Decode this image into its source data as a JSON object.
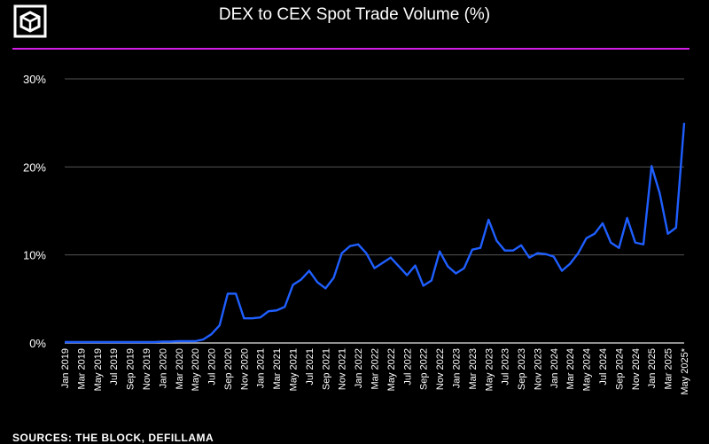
{
  "header": {
    "title": "DEX to CEX Spot Trade Volume (%)",
    "logo_icon": "the-block-cube-logo",
    "rule_color": "#d21ee6"
  },
  "footer": {
    "source": "SOURCES: THE BLOCK, DEFILLAMA"
  },
  "chart_data": {
    "type": "line",
    "title": "DEX to CEX Spot Trade Volume (%)",
    "xlabel": "",
    "ylabel": "",
    "ylim": [
      0,
      30
    ],
    "yticks": [
      0,
      10,
      20,
      30
    ],
    "ytick_labels": [
      "0%",
      "10%",
      "20%",
      "30%"
    ],
    "grid": true,
    "line_color": "#1f5fff",
    "xtick_labels": [
      "Jan 2019",
      "Mar 2019",
      "May 2019",
      "Jul 2019",
      "Sep 2019",
      "Nov 2019",
      "Jan 2020",
      "Mar 2020",
      "May 2020",
      "Jul 2020",
      "Sep 2020",
      "Nov 2020",
      "Jan 2021",
      "Mar 2021",
      "May 2021",
      "Jul 2021",
      "Sep 2021",
      "Nov 2021",
      "Jan 2022",
      "Mar 2022",
      "May 2022",
      "Jul 2022",
      "Sep 2022",
      "Nov 2022",
      "Jan 2023",
      "Mar 2023",
      "May 2023",
      "Jul 2023",
      "Sep 2023",
      "Nov 2023",
      "Jan 2024",
      "Mar 2024",
      "May 2024",
      "Jul 2024",
      "Sep 2024",
      "Nov 2024",
      "Jan 2025",
      "Mar 2025",
      "May 2025*"
    ],
    "x": [
      "Jan 2019",
      "Feb 2019",
      "Mar 2019",
      "Apr 2019",
      "May 2019",
      "Jun 2019",
      "Jul 2019",
      "Aug 2019",
      "Sep 2019",
      "Oct 2019",
      "Nov 2019",
      "Dec 2019",
      "Jan 2020",
      "Feb 2020",
      "Mar 2020",
      "Apr 2020",
      "May 2020",
      "Jun 2020",
      "Jul 2020",
      "Aug 2020",
      "Sep 2020",
      "Oct 2020",
      "Nov 2020",
      "Dec 2020",
      "Jan 2021",
      "Feb 2021",
      "Mar 2021",
      "Apr 2021",
      "May 2021",
      "Jun 2021",
      "Jul 2021",
      "Aug 2021",
      "Sep 2021",
      "Oct 2021",
      "Nov 2021",
      "Dec 2021",
      "Jan 2022",
      "Feb 2022",
      "Mar 2022",
      "Apr 2022",
      "May 2022",
      "Jun 2022",
      "Jul 2022",
      "Aug 2022",
      "Sep 2022",
      "Oct 2022",
      "Nov 2022",
      "Dec 2022",
      "Jan 2023",
      "Feb 2023",
      "Mar 2023",
      "Apr 2023",
      "May 2023",
      "Jun 2023",
      "Jul 2023",
      "Aug 2023",
      "Sep 2023",
      "Oct 2023",
      "Nov 2023",
      "Dec 2023",
      "Jan 2024",
      "Feb 2024",
      "Mar 2024",
      "Apr 2024",
      "May 2024",
      "Jun 2024",
      "Jul 2024",
      "Aug 2024",
      "Sep 2024",
      "Oct 2024",
      "Nov 2024",
      "Dec 2024",
      "Jan 2025",
      "Feb 2025",
      "Mar 2025",
      "Apr 2025",
      "May 2025*"
    ],
    "series": [
      {
        "values": [
          0.1,
          0.1,
          0.1,
          0.1,
          0.1,
          0.1,
          0.1,
          0.1,
          0.1,
          0.1,
          0.1,
          0.1,
          0.15,
          0.15,
          0.2,
          0.2,
          0.2,
          0.4,
          1.0,
          2.0,
          5.6,
          5.6,
          2.8,
          2.8,
          2.9,
          3.6,
          3.7,
          4.1,
          6.6,
          7.2,
          8.2,
          6.9,
          6.2,
          7.4,
          10.2,
          11.0,
          11.2,
          10.2,
          8.5,
          9.1,
          9.7,
          8.7,
          7.7,
          8.8,
          6.5,
          7.1,
          10.4,
          8.7,
          7.9,
          8.5,
          10.6,
          10.8,
          14.0,
          11.6,
          10.5,
          10.5,
          11.1,
          9.7,
          10.2,
          10.1,
          9.8,
          8.2,
          9.0,
          10.2,
          11.9,
          12.4,
          13.6,
          11.4,
          10.8,
          14.2,
          11.4,
          11.2,
          20.1,
          17.0,
          12.4,
          13.1,
          25.0
        ]
      }
    ]
  }
}
